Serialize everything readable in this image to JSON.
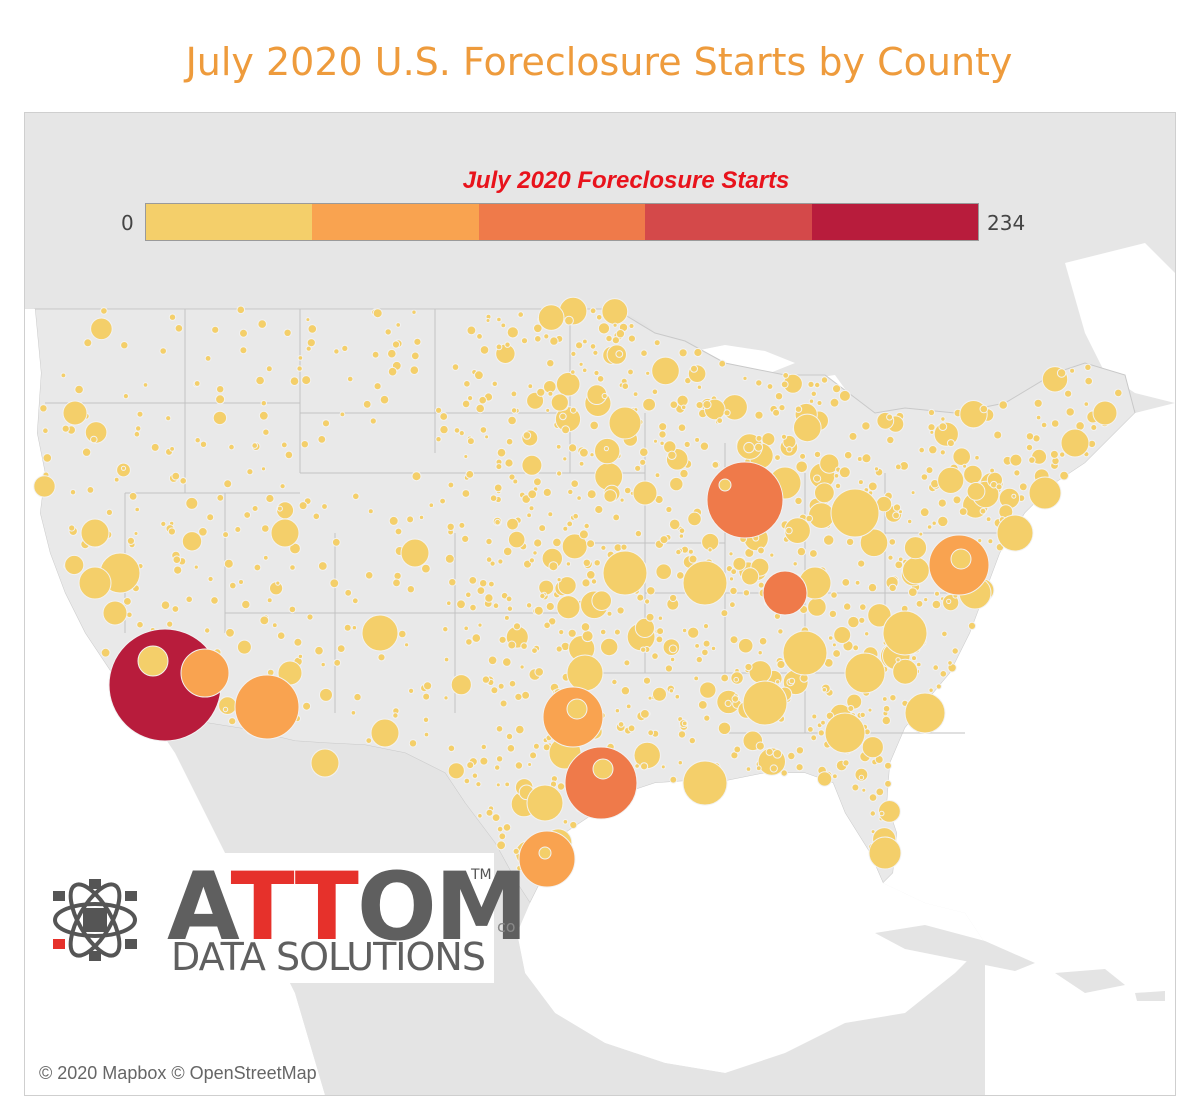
{
  "title": "July 2020 U.S. Foreclosure Starts by County",
  "legend": {
    "title": "July 2020 Foreclosure Starts",
    "min_label": "0",
    "max_label": "234",
    "colors": [
      "#f4cf6a",
      "#f9a350",
      "#ef7a4a",
      "#d4494a",
      "#b81c3c"
    ]
  },
  "map": {
    "land_color": "#e4e4e4",
    "us_color": "#e9e9e9",
    "water_color": "#ffffff",
    "marker_color": "#f4cf6a",
    "labels": {
      "mexico_fragment": "co"
    },
    "attribution": "© 2020 Mapbox © OpenStreetMap"
  },
  "logo": {
    "word_part1": "A",
    "word_red": "TT",
    "word_part2": "OM",
    "trademark": "TM",
    "subtitle": "DATA SOLUTIONS"
  }
}
